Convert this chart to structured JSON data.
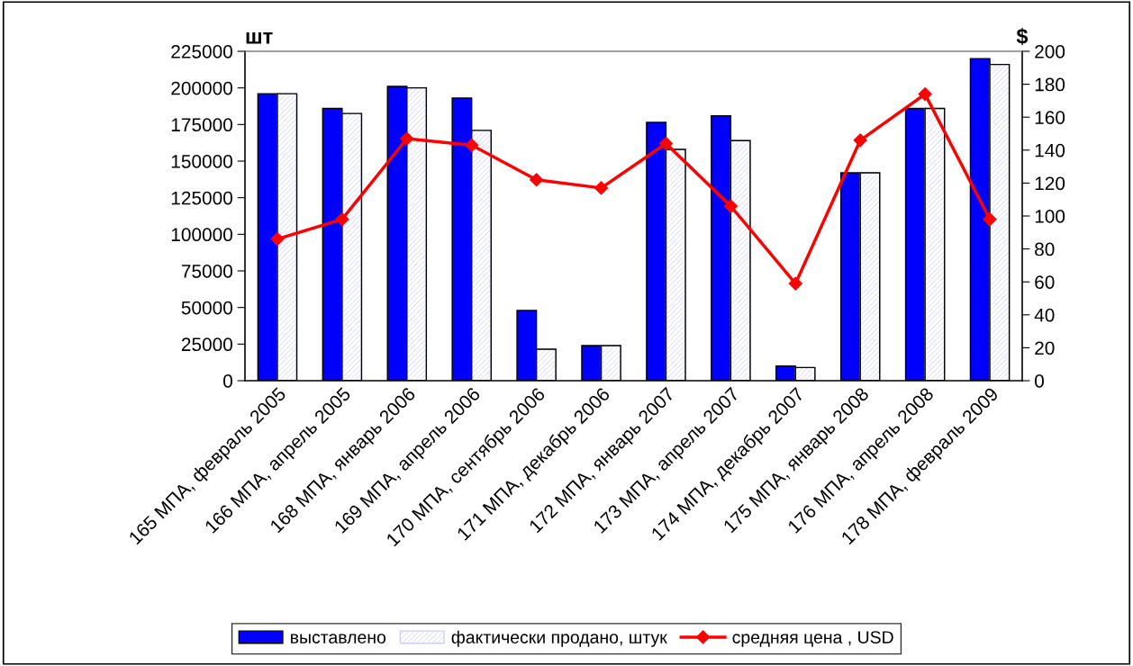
{
  "chart_data": {
    "type": "bar",
    "ylabel": "шт",
    "y2label": "$",
    "categories": [
      "165 МПА, февраль 2005",
      "166 МПА, апрель 2005",
      "168 МПА, январь 2006",
      "169 МПА, апрель 2006",
      "170 МПА, сентябрь 2006",
      "171 МПА, декабрь 2006",
      "172 МПА, январь 2007",
      "173 МПА, апрель 2007",
      "174 МПА, декабрь 2007",
      "175 МПА, январь 2008",
      "176 МПА, апрель 2008",
      "178 МПА, февраль 2009"
    ],
    "series": [
      {
        "name": "выставлено",
        "color": "#0000ff",
        "values": [
          196000,
          186000,
          201000,
          193000,
          48000,
          24000,
          176500,
          181000,
          10000,
          142000,
          186000,
          220000
        ]
      },
      {
        "name": "фактически продано, штук",
        "color": "#ccccff",
        "values": [
          196000,
          182500,
          200000,
          171000,
          21500,
          24000,
          158000,
          164000,
          9000,
          142000,
          186000,
          216000
        ]
      },
      {
        "name": "средняя цена , USD",
        "type": "line",
        "axis": "y2",
        "color": "#ff0000",
        "marker": "diamond",
        "values": [
          86,
          98,
          147,
          143,
          122,
          117,
          144,
          106,
          59,
          146,
          174,
          98
        ]
      }
    ],
    "ylim": [
      0,
      225000
    ],
    "yticks": [
      0,
      25000,
      50000,
      75000,
      100000,
      125000,
      150000,
      175000,
      200000,
      225000
    ],
    "y2lim": [
      0,
      200
    ],
    "y2ticks": [
      0,
      20,
      40,
      60,
      80,
      100,
      120,
      140,
      160,
      180,
      200
    ],
    "grid": false,
    "legend": "bottom"
  }
}
